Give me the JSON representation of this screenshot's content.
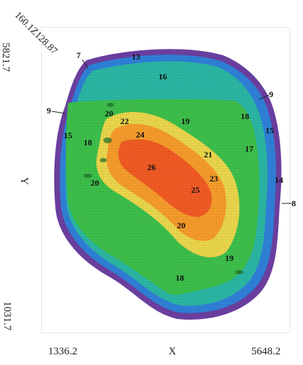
{
  "axes": {
    "x_label": "X",
    "y_label": "Y",
    "x_min": "1336.2",
    "x_max": "5648.2",
    "y_min": "1031.7",
    "y_max": "5821.7",
    "corner_label": "160.1Z128.87"
  },
  "contour_labels": {
    "inner": [
      "13",
      "16",
      "20",
      "22",
      "24",
      "26",
      "25",
      "23",
      "21",
      "19",
      "18",
      "17",
      "15",
      "15",
      "14",
      "18",
      "20",
      "20",
      "19",
      "18"
    ],
    "outer": [
      "7",
      "9",
      "9",
      "8"
    ]
  },
  "colors": {
    "outer_rim": "#6b3fa0",
    "blue": "#2f7fd6",
    "teal": "#2ab5a2",
    "green": "#3dbd4a",
    "yellow": "#e8d44a",
    "orange": "#f39a2b",
    "red": "#ef5a24"
  }
}
